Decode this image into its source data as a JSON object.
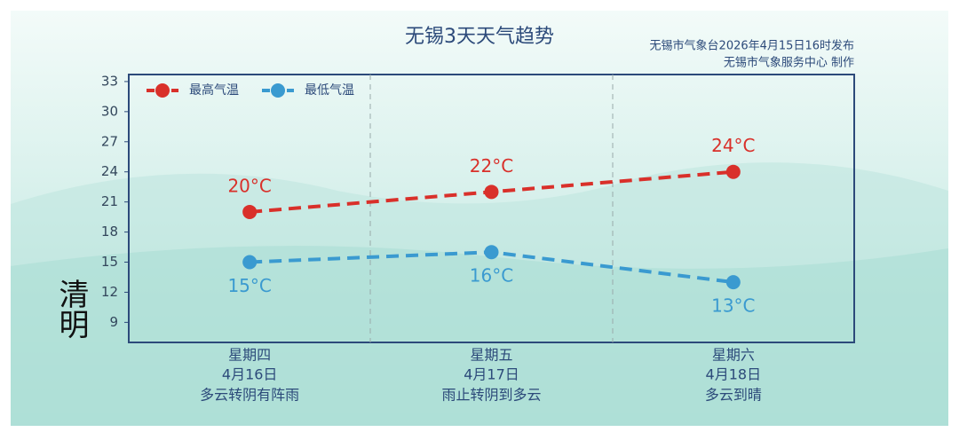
{
  "chart_data": {
    "type": "line",
    "title": "无锡3天天气趋势",
    "subtitle": [
      "无锡市气象台2026年4月15日16时发布",
      "无锡市气象服务中心 制作"
    ],
    "badge": "清明",
    "categories": [
      "星期四",
      "星期五",
      "星期六"
    ],
    "dates": [
      "4月16日",
      "4月17日",
      "4月18日"
    ],
    "weather": [
      "多云转阴有阵雨",
      "雨止转阴到多云",
      "多云到晴"
    ],
    "series": [
      {
        "name": "最高气温",
        "color": "#d9302a",
        "values": [
          20,
          22,
          24
        ],
        "value_labels": [
          "20°C",
          "22°C",
          "24°C"
        ]
      },
      {
        "name": "最低气温",
        "color": "#3a9ad0",
        "values": [
          15,
          16,
          13
        ],
        "value_labels": [
          "15°C",
          "16°C",
          "13°C"
        ]
      }
    ],
    "ylim": [
      7,
      33.7
    ],
    "yticks": [
      9,
      12,
      15,
      18,
      21,
      24,
      27,
      30,
      33
    ],
    "legend": "top-left"
  }
}
